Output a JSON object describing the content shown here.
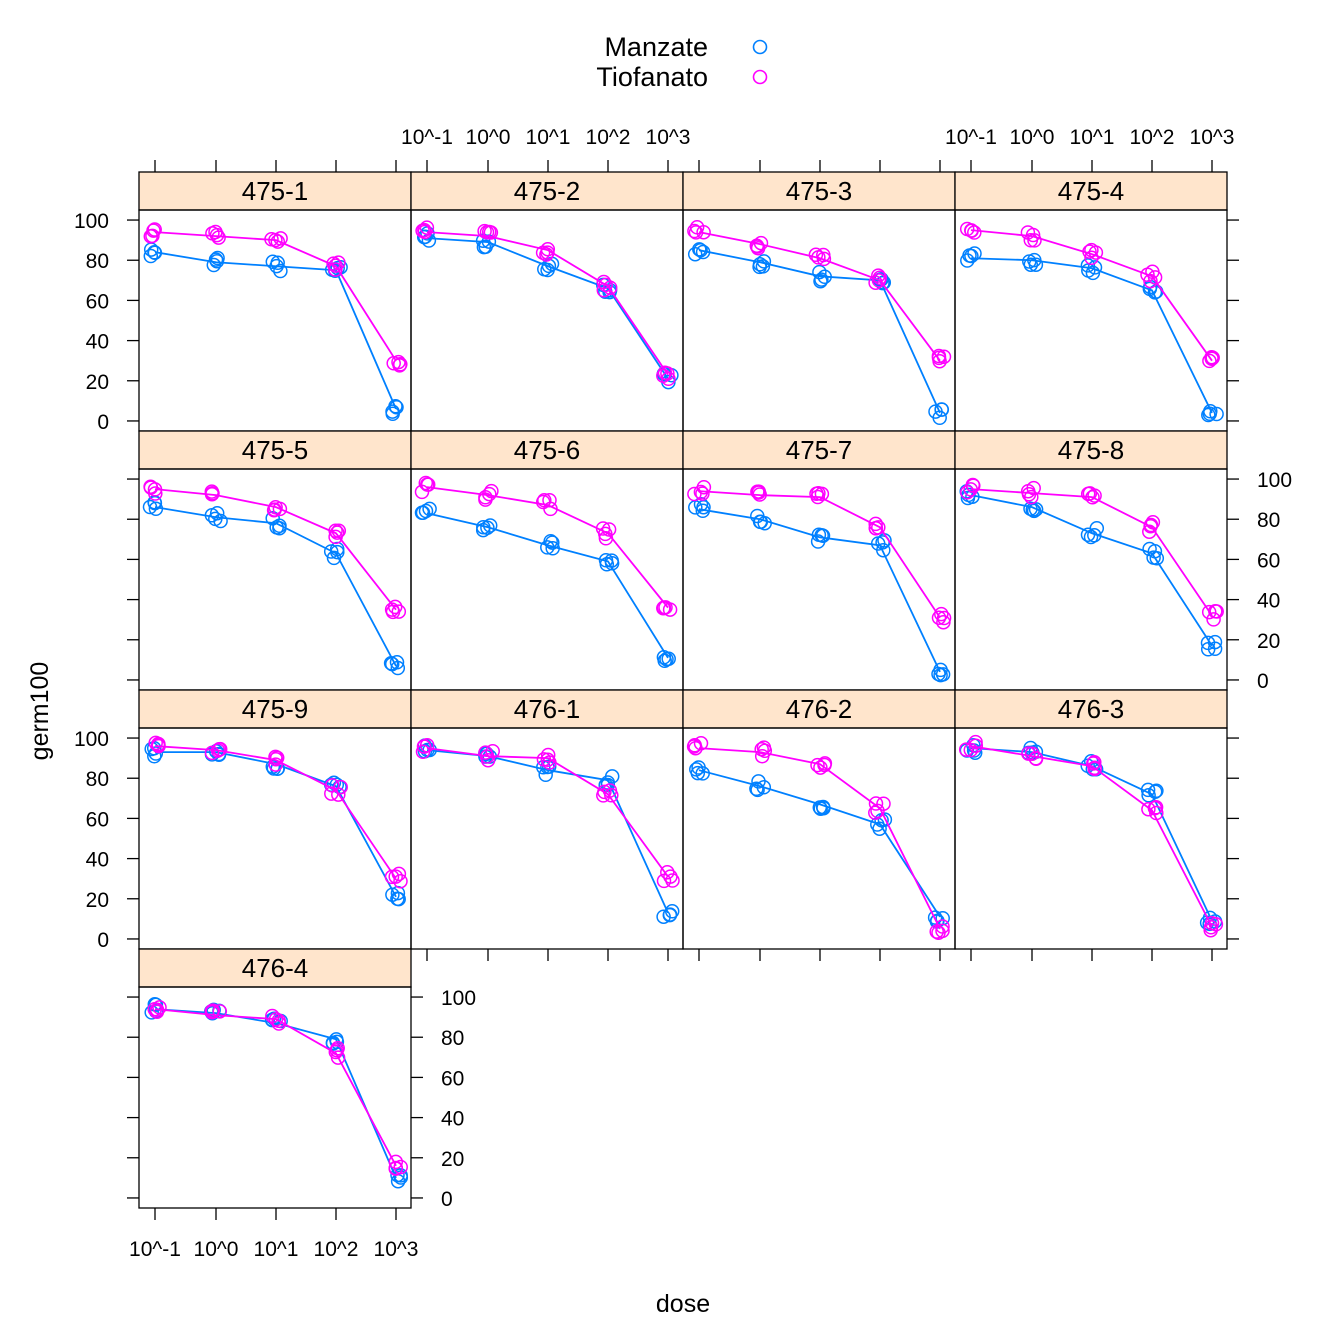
{
  "chart_data": {
    "type": "scatter",
    "title": "",
    "xlabel": "dose",
    "ylabel": "germ100",
    "x_scale": "log10",
    "x_ticks": [
      "10^-1",
      "10^0",
      "10^1",
      "10^2",
      "10^3"
    ],
    "x_tick_values": [
      0.1,
      1,
      10,
      100,
      1000
    ],
    "y_ticks": [
      "0",
      "20",
      "40",
      "60",
      "80",
      "100"
    ],
    "ylim": [
      -5,
      105
    ],
    "legend_position": "top-center",
    "legend": [
      {
        "name": "Manzate",
        "color": "#0080ff",
        "symbol": "open-circle"
      },
      {
        "name": "Tiofanato",
        "color": "#ff00ff",
        "symbol": "open-circle"
      }
    ],
    "panels": [
      {
        "label": "475-1",
        "series": [
          {
            "name": "Manzate",
            "y": [
              84,
              79,
              77,
              75,
              6
            ]
          },
          {
            "name": "Tiofanato",
            "y": [
              94,
              92,
              90,
              77,
              30
            ]
          }
        ]
      },
      {
        "label": "475-2",
        "series": [
          {
            "name": "Manzate",
            "y": [
              91,
              89,
              77,
              66,
              21
            ]
          },
          {
            "name": "Tiofanato",
            "y": [
              94,
              92,
              85,
              67,
              23
            ]
          }
        ]
      },
      {
        "label": "475-3",
        "series": [
          {
            "name": "Manzate",
            "y": [
              85,
              79,
              72,
              70,
              4
            ]
          },
          {
            "name": "Tiofanato",
            "y": [
              94,
              88,
              81,
              70,
              30
            ]
          }
        ]
      },
      {
        "label": "475-4",
        "series": [
          {
            "name": "Manzate",
            "y": [
              81,
              80,
              76,
              65,
              4
            ]
          },
          {
            "name": "Tiofanato",
            "y": [
              95,
              92,
              83,
              72,
              30
            ]
          }
        ]
      },
      {
        "label": "475-5",
        "series": [
          {
            "name": "Manzate",
            "y": [
              86,
              81,
              78,
              63,
              7
            ]
          },
          {
            "name": "Tiofanato",
            "y": [
              95,
              92,
              86,
              73,
              35
            ]
          }
        ]
      },
      {
        "label": "475-6",
        "series": [
          {
            "name": "Manzate",
            "y": [
              83,
              76,
              67,
              59,
              11
            ]
          },
          {
            "name": "Tiofanato",
            "y": [
              96,
              92,
              87,
              73,
              36
            ]
          }
        ]
      },
      {
        "label": "475-7",
        "series": [
          {
            "name": "Manzate",
            "y": [
              85,
              80,
              71,
              67,
              4
            ]
          },
          {
            "name": "Tiofanato",
            "y": [
              94,
              92,
              91,
              76,
              31
            ]
          }
        ]
      },
      {
        "label": "475-8",
        "series": [
          {
            "name": "Manzate",
            "y": [
              92,
              86,
              73,
              63,
              17
            ]
          },
          {
            "name": "Tiofanato",
            "y": [
              95,
              93,
              91,
              76,
              32
            ]
          }
        ]
      },
      {
        "label": "475-9",
        "series": [
          {
            "name": "Manzate",
            "y": [
              93,
              93,
              87,
              76,
              21
            ]
          },
          {
            "name": "Tiofanato",
            "y": [
              96,
              94,
              89,
              74,
              30
            ]
          }
        ]
      },
      {
        "label": "476-1",
        "series": [
          {
            "name": "Manzate",
            "y": [
              94,
              91,
              84,
              79,
              13
            ]
          },
          {
            "name": "Tiofanato",
            "y": [
              95,
              91,
              90,
              72,
              31
            ]
          }
        ]
      },
      {
        "label": "476-2",
        "series": [
          {
            "name": "Manzate",
            "y": [
              84,
              76,
              67,
              57,
              11
            ]
          },
          {
            "name": "Tiofanato",
            "y": [
              95,
              93,
              87,
              65,
              5
            ]
          }
        ]
      },
      {
        "label": "476-3",
        "series": [
          {
            "name": "Manzate",
            "y": [
              95,
              93,
              86,
              72,
              9
            ]
          },
          {
            "name": "Tiofanato",
            "y": [
              96,
              91,
              86,
              64,
              6
            ]
          }
        ]
      },
      {
        "label": "476-4",
        "series": [
          {
            "name": "Manzate",
            "y": [
              94,
              92,
              87,
              79,
              10
            ]
          },
          {
            "name": "Tiofanato",
            "y": [
              94,
              91,
              89,
              72,
              16
            ]
          }
        ]
      }
    ]
  }
}
